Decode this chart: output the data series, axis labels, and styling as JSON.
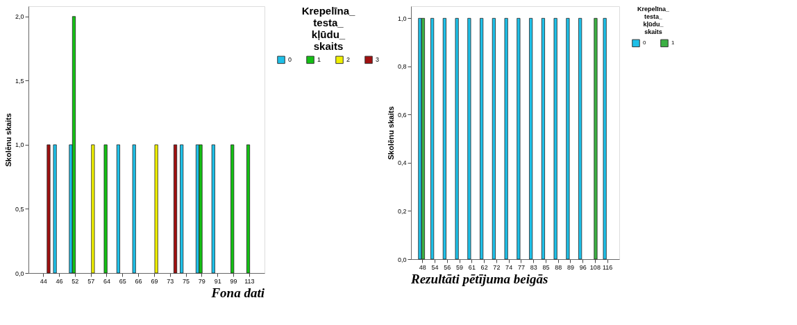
{
  "chart_data": [
    {
      "type": "bar",
      "title": "Fona dati",
      "ylabel": "Skolēnu skaits",
      "legend_title": "Krepelīna_testa_kļūdu_skaits",
      "legend": "top right",
      "grid": false,
      "categories": [
        "44",
        "46",
        "52",
        "57",
        "64",
        "65",
        "66",
        "69",
        "73",
        "75",
        "79",
        "91",
        "99",
        "113"
      ],
      "series": [
        {
          "name": "0",
          "color": "#1ec0e8",
          "values": [
            null,
            1,
            1,
            null,
            null,
            1,
            1,
            null,
            null,
            1,
            1,
            1,
            null,
            null
          ]
        },
        {
          "name": "1",
          "color": "#14c014",
          "values": [
            null,
            null,
            2,
            null,
            1,
            null,
            null,
            null,
            null,
            null,
            1,
            null,
            1,
            1
          ]
        },
        {
          "name": "2",
          "color": "#f0f000",
          "values": [
            null,
            null,
            null,
            1,
            null,
            null,
            null,
            1,
            null,
            null,
            null,
            null,
            null,
            null
          ]
        },
        {
          "name": "3",
          "color": "#a01010",
          "values": [
            1,
            null,
            null,
            null,
            null,
            null,
            null,
            null,
            1,
            null,
            null,
            null,
            null,
            null
          ]
        }
      ],
      "ylim": [
        0,
        2.08
      ],
      "yticks": [
        {
          "value": 0,
          "label": "0,0"
        },
        {
          "value": 0.5,
          "label": "0,5"
        },
        {
          "value": 1,
          "label": "1,0"
        },
        {
          "value": 1.5,
          "label": "1,5"
        },
        {
          "value": 2,
          "label": "2,0"
        }
      ]
    },
    {
      "type": "bar",
      "title": "Rezultāti pētījuma beigās",
      "ylabel": "Skolēnu skaits",
      "legend_title": "Krepelīna_testa_kļūdu_skaits",
      "legend": "top right",
      "grid": false,
      "categories": [
        "48",
        "54",
        "56",
        "59",
        "61",
        "62",
        "72",
        "74",
        "77",
        "83",
        "85",
        "88",
        "89",
        "96",
        "108",
        "116"
      ],
      "series": [
        {
          "name": "0",
          "color": "#1ec0e8",
          "values": [
            1,
            1,
            1,
            1,
            1,
            1,
            1,
            1,
            1,
            1,
            1,
            1,
            1,
            1,
            null,
            1
          ]
        },
        {
          "name": "1",
          "color": "#3cb043",
          "values": [
            1,
            null,
            null,
            null,
            null,
            null,
            null,
            null,
            null,
            null,
            null,
            null,
            null,
            null,
            1,
            null
          ]
        }
      ],
      "ylim": [
        0,
        1.05
      ],
      "yticks": [
        {
          "value": 0,
          "label": "0,0"
        },
        {
          "value": 0.2,
          "label": "0,2"
        },
        {
          "value": 0.4,
          "label": "0,4"
        },
        {
          "value": 0.6,
          "label": "0,6"
        },
        {
          "value": 0.8,
          "label": "0,8"
        },
        {
          "value": 1,
          "label": "1,0"
        }
      ]
    }
  ]
}
